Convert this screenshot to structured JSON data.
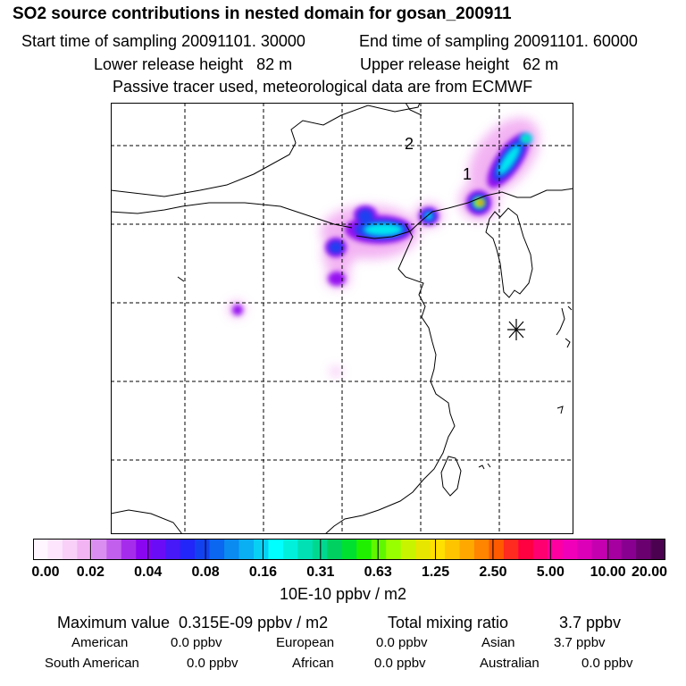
{
  "header": {
    "title": "SO2 source contributions in nested domain for gosan_200911",
    "start_label": "Start time of sampling 20091101. 30000",
    "end_label": "End time of sampling 20091101. 60000",
    "lower_label": "Lower release height   82 m",
    "upper_label": "Upper release height   62 m",
    "note": "Passive tracer used, meteorological data are from ECMWF"
  },
  "map": {
    "markers": [
      {
        "id": "receptor",
        "label": "1"
      },
      {
        "id": "secondary",
        "label": "2"
      }
    ]
  },
  "colorbar": {
    "ticks": [
      "0.00",
      "0.02",
      "0.04",
      "0.08",
      "0.16",
      "0.31",
      "0.63",
      "1.25",
      "2.50",
      "5.00",
      "10.00",
      "20.00"
    ],
    "unit": "10E-10 ppbv / m2",
    "colors": [
      "#fff6ff",
      "#fde6fd",
      "#f8d0f8",
      "#f2b4f2",
      "#d98ef0",
      "#c25fec",
      "#a62ceb",
      "#8a05f0",
      "#6a0cf6",
      "#4718f8",
      "#2326f8",
      "#1242f0",
      "#0b66f0",
      "#0b8af0",
      "#0aaef2",
      "#08d0f4",
      "#00ffff",
      "#00f0dc",
      "#00e0b4",
      "#00d890",
      "#00d060",
      "#00e030",
      "#20f000",
      "#60f800",
      "#98ff00",
      "#c8f400",
      "#e6e600",
      "#ffe000",
      "#ffc400",
      "#ffa800",
      "#ff8400",
      "#ff5a00",
      "#ff2a20",
      "#ff0040",
      "#ff0070",
      "#ff00a0",
      "#f000b8",
      "#dc00b8",
      "#c400b0",
      "#a600a0",
      "#880090",
      "#6a0070",
      "#4c0050"
    ]
  },
  "stats": {
    "max_label": "Maximum value  0.315E-09 ppbv / m2",
    "total_label": "Total mixing ratio",
    "total_value": "3.7 ppbv",
    "sources": [
      {
        "name": "American",
        "value": "0.0 ppbv"
      },
      {
        "name": "European",
        "value": "0.0 ppbv"
      },
      {
        "name": "Asian",
        "value": "3.7 ppbv"
      },
      {
        "name": "South American",
        "value": "0.0 ppbv"
      },
      {
        "name": "African",
        "value": "0.0 ppbv"
      },
      {
        "name": "Australian",
        "value": "0.0 ppbv"
      }
    ]
  }
}
